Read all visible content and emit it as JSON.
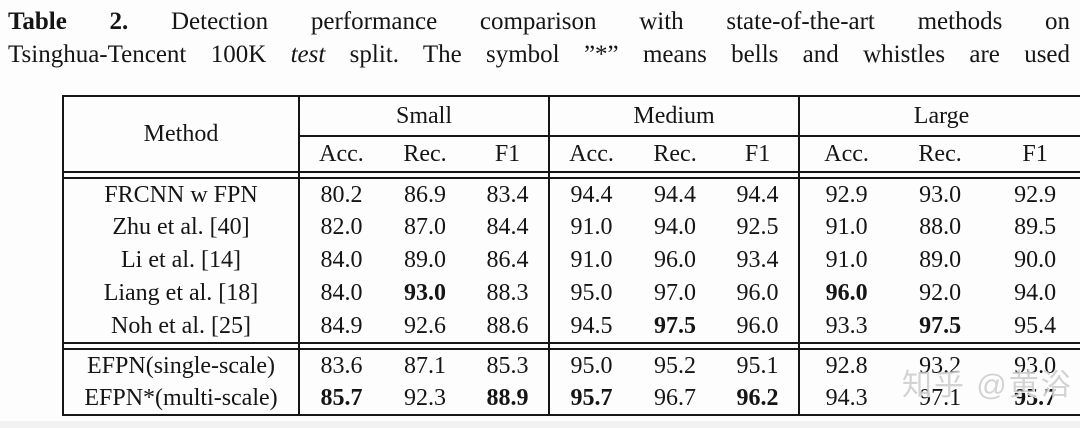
{
  "caption": {
    "label": "Table 2.",
    "line1_rest": "Detection performance comparison with state-of-the-art methods on",
    "line2_pre": "Tsinghua-Tencent 100K",
    "line2_italic": "test",
    "line2_post": "split. The symbol ”*” means bells and whistles are used"
  },
  "table": {
    "method_header": "Method",
    "groups": [
      {
        "label": "Small",
        "sub": [
          "Acc.",
          "Rec.",
          "F1"
        ]
      },
      {
        "label": "Medium",
        "sub": [
          "Acc.",
          "Rec.",
          "F1"
        ]
      },
      {
        "label": "Large",
        "sub": [
          "Acc.",
          "Rec.",
          "F1"
        ]
      }
    ],
    "rows": [
      {
        "method": "FRCNN w FPN",
        "values": [
          "80.2",
          "86.9",
          "83.4",
          "94.4",
          "94.4",
          "94.4",
          "92.9",
          "93.0",
          "92.9"
        ],
        "bold": [
          0,
          0,
          0,
          0,
          0,
          0,
          0,
          0,
          0
        ],
        "rule_before": true
      },
      {
        "method": "Zhu et al. [40]",
        "values": [
          "82.0",
          "87.0",
          "84.4",
          "91.0",
          "94.0",
          "92.5",
          "91.0",
          "88.0",
          "89.5"
        ],
        "bold": [
          0,
          0,
          0,
          0,
          0,
          0,
          0,
          0,
          0
        ],
        "rule_before": false
      },
      {
        "method": "Li et al. [14]",
        "values": [
          "84.0",
          "89.0",
          "86.4",
          "91.0",
          "96.0",
          "93.4",
          "91.0",
          "89.0",
          "90.0"
        ],
        "bold": [
          0,
          0,
          0,
          0,
          0,
          0,
          0,
          0,
          0
        ],
        "rule_before": false
      },
      {
        "method": "Liang et al. [18]",
        "values": [
          "84.0",
          "93.0",
          "88.3",
          "95.0",
          "97.0",
          "96.0",
          "96.0",
          "92.0",
          "94.0"
        ],
        "bold": [
          0,
          1,
          0,
          0,
          0,
          0,
          1,
          0,
          0
        ],
        "rule_before": false
      },
      {
        "method": "Noh et al. [25]",
        "values": [
          "84.9",
          "92.6",
          "88.6",
          "94.5",
          "97.5",
          "96.0",
          "93.3",
          "97.5",
          "95.4"
        ],
        "bold": [
          0,
          0,
          0,
          0,
          1,
          0,
          0,
          1,
          0
        ],
        "rule_before": false
      },
      {
        "method": "EFPN(single-scale)",
        "values": [
          "83.6",
          "87.1",
          "85.3",
          "95.0",
          "95.2",
          "95.1",
          "92.8",
          "93.2",
          "93.0"
        ],
        "bold": [
          0,
          0,
          0,
          0,
          0,
          0,
          0,
          0,
          0
        ],
        "rule_before": true
      },
      {
        "method": "EFPN*(multi-scale)",
        "values": [
          "85.7",
          "92.3",
          "88.9",
          "95.7",
          "96.7",
          "96.2",
          "94.3",
          "97.1",
          "95.7"
        ],
        "bold": [
          1,
          0,
          1,
          1,
          0,
          1,
          0,
          0,
          1
        ],
        "rule_before": false
      }
    ]
  },
  "watermark": {
    "text": "知乎 @黄浴"
  },
  "colors": {
    "background": "#fdfdfd",
    "text": "#151515",
    "border": "#161616",
    "watermark": "#c6c6c6"
  }
}
